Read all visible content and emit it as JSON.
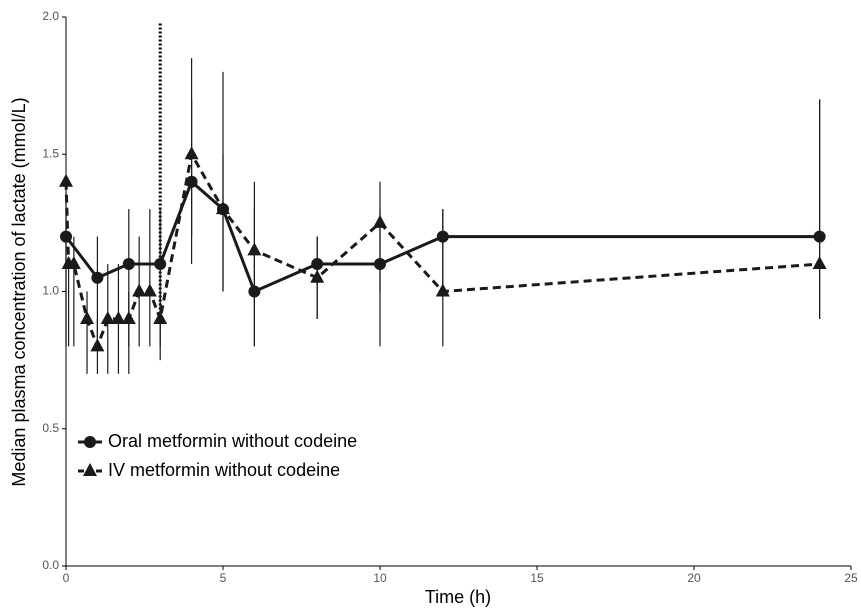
{
  "chart_data": {
    "type": "line",
    "x_label": "Time (h)",
    "y_label": "Median plasma concentration of lactate (mmol/L)",
    "xlim": [
      0,
      25
    ],
    "ylim": [
      0,
      2.0
    ],
    "xticks": [
      0,
      5,
      10,
      15,
      20,
      25
    ],
    "yticks": [
      {
        "value": 0,
        "label": "0.0"
      },
      0.5,
      {
        "value": 1,
        "label": "1.0"
      },
      1.5,
      {
        "value": 2,
        "label": "2.0"
      }
    ],
    "legend": "lower left",
    "vline": {
      "x": 3,
      "ylim": [
        0.92,
        1.98
      ]
    },
    "series": [
      {
        "name": "Oral metformin without codeine",
        "color": "#1a1a1a",
        "marker": "circle",
        "dash": false,
        "x": [
          0,
          1,
          2,
          3,
          4,
          5,
          6,
          8,
          10,
          12,
          24
        ],
        "values": [
          1.2,
          1.05,
          1.1,
          1.1,
          1.4,
          1.3,
          1.0,
          1.1,
          1.1,
          1.2,
          1.2
        ],
        "lower": [
          0.8,
          0.8,
          0.8,
          0.8,
          1.1,
          1.0,
          0.8,
          0.9,
          0.8,
          1.0,
          0.9
        ],
        "upper": [
          1.3,
          1.2,
          1.3,
          1.3,
          1.7,
          1.8,
          1.3,
          1.2,
          1.3,
          1.3,
          1.7
        ]
      },
      {
        "name": "IV metformin without codeine",
        "color": "#1a1a1a",
        "marker": "triangle",
        "dash": true,
        "x": [
          0,
          0.083,
          0.25,
          0.67,
          1,
          1.33,
          1.67,
          2,
          2.33,
          2.67,
          3,
          4,
          5,
          6,
          8,
          10,
          12,
          24
        ],
        "values": [
          1.4,
          1.1,
          1.1,
          0.9,
          0.8,
          0.9,
          0.9,
          0.9,
          1.0,
          1.0,
          0.9,
          1.5,
          1.3,
          1.15,
          1.05,
          1.25,
          1.0,
          1.1
        ],
        "lower": [
          0.8,
          0.8,
          0.8,
          0.7,
          0.7,
          0.7,
          0.7,
          0.7,
          0.8,
          0.8,
          0.75,
          1.2,
          1.0,
          0.8,
          0.9,
          1.0,
          0.8,
          0.9
        ],
        "upper": [
          1.4,
          1.1,
          1.2,
          1.0,
          0.9,
          1.1,
          1.1,
          1.0,
          1.2,
          1.3,
          1.0,
          1.85,
          1.5,
          1.4,
          1.2,
          1.4,
          1.3,
          1.7
        ]
      }
    ]
  }
}
